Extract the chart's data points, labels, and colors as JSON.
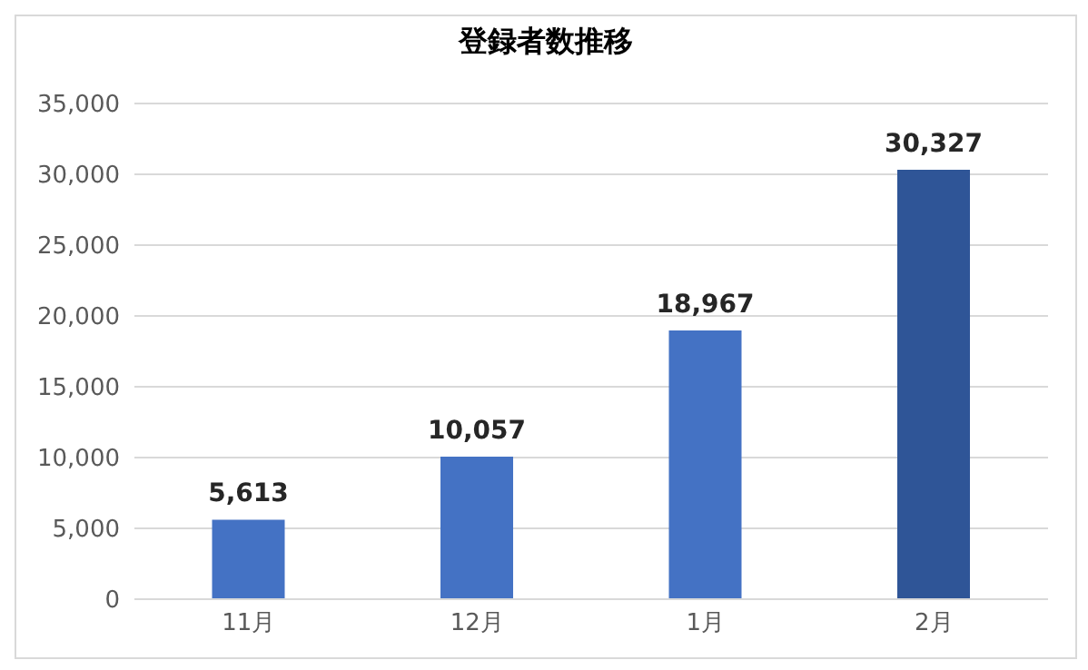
{
  "chart_data": {
    "type": "bar",
    "title": "登録者数推移",
    "categories": [
      "11月",
      "12月",
      "1月",
      "2月"
    ],
    "values": [
      5613,
      10057,
      18967,
      30327
    ],
    "colors": [
      "#4472c4",
      "#4472c4",
      "#4472c4",
      "#2f5597"
    ],
    "value_labels": [
      "5,613",
      "10,057",
      "18,967",
      "30,327"
    ],
    "ylim": [
      0,
      35000
    ],
    "yticks": [
      {
        "value": 0,
        "label": "0"
      },
      {
        "value": 5000,
        "label": "5,000"
      },
      {
        "value": 10000,
        "label": "10,000"
      },
      {
        "value": 15000,
        "label": "15,000"
      },
      {
        "value": 20000,
        "label": "20,000"
      },
      {
        "value": 25000,
        "label": "25,000"
      },
      {
        "value": 30000,
        "label": "30,000"
      },
      {
        "value": 35000,
        "label": "35,000"
      }
    ],
    "grid": "y"
  }
}
